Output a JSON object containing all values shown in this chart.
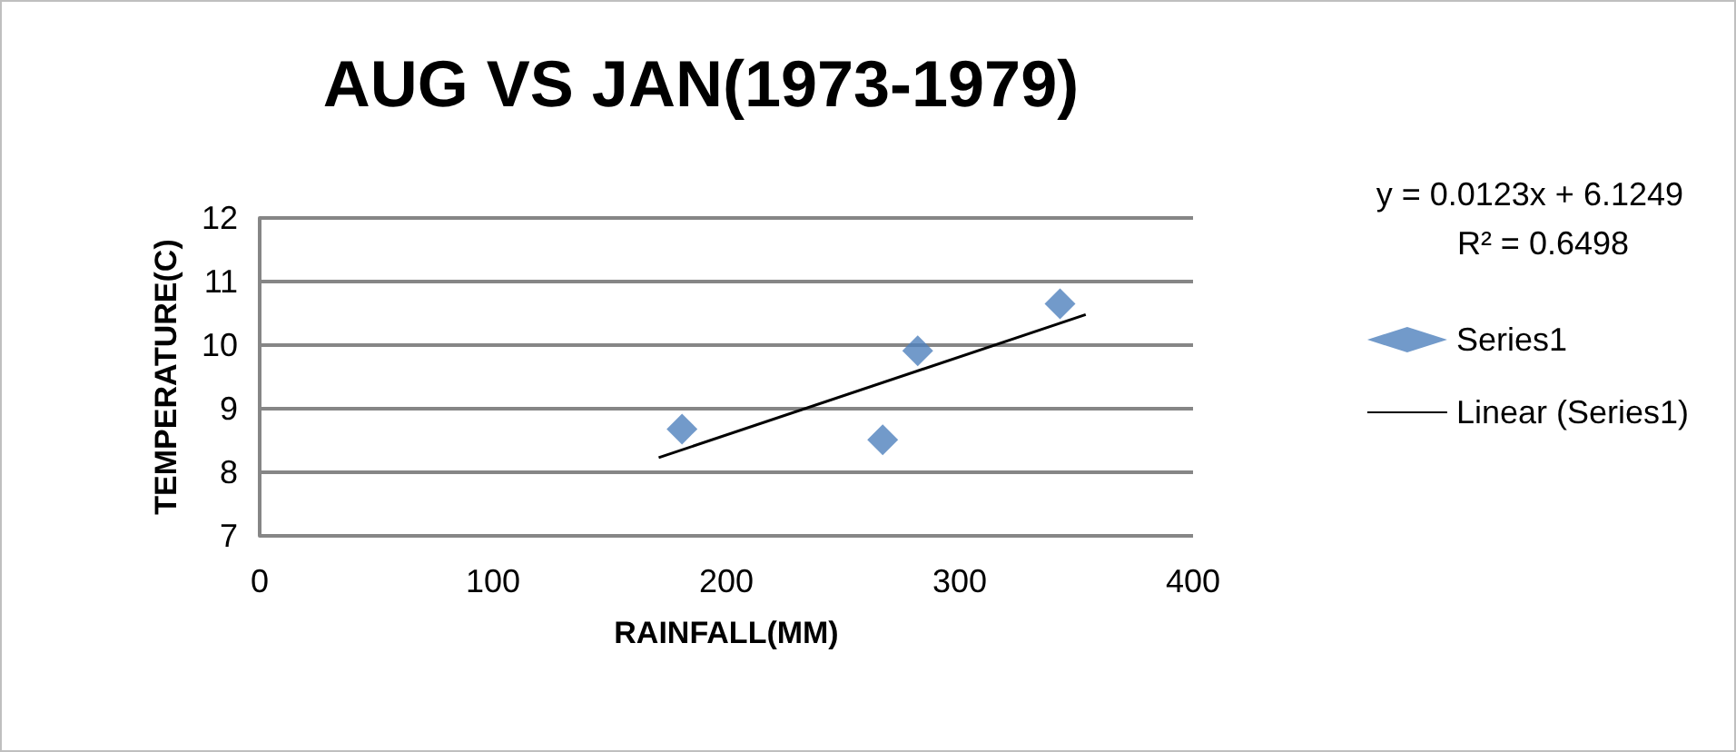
{
  "chart_data": {
    "type": "scatter",
    "title": "AUG VS JAN(1973-1979)",
    "xlabel": "RAINFALL(MM)",
    "ylabel": "TEMPERATURE(C)",
    "series": [
      {
        "name": "Series1",
        "color": "#4f81bd",
        "x": [
          181,
          267,
          282,
          343
        ],
        "values": [
          8.68,
          8.51,
          9.91,
          10.65
        ],
        "marker": "diamond"
      },
      {
        "name": "Linear (Series1)",
        "type": "line",
        "color": "#000000",
        "x": [
          171,
          354
        ],
        "values": [
          8.23,
          10.48
        ],
        "marker": "none",
        "line_style": "solid"
      }
    ],
    "xlim": [
      0,
      400
    ],
    "xticks": [
      0,
      100,
      200,
      300,
      400
    ],
    "ylim": [
      7,
      12
    ],
    "yticks": [
      7,
      8,
      9,
      10,
      11,
      12
    ],
    "grid": "y",
    "legend": "right",
    "annotations": [
      "y = 0.0123x + 6.1249",
      "R² = 0.6498"
    ]
  }
}
